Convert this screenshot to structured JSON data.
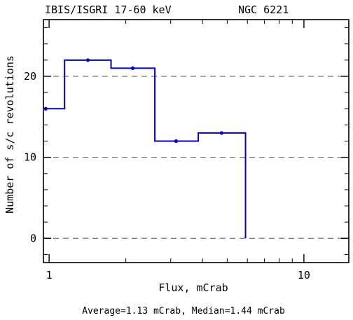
{
  "header": {
    "left_title": "IBIS/ISGRI 17-60 keV",
    "right_title": "NGC 6221"
  },
  "footer": {
    "stats": "Average=1.13 mCrab,  Median=1.44 mCrab"
  },
  "chart_data": {
    "type": "line",
    "style": "step-histogram",
    "title": "",
    "xlabel": "Flux, mCrab",
    "ylabel": "Number of s/c revolutions",
    "xscale": "log",
    "xlim": [
      0.95,
      15
    ],
    "ylim": [
      -3,
      27
    ],
    "grid": "horizontal dashed at y=0, 10, 20",
    "line_color": "#0000cc",
    "x_ticks": [
      {
        "value": 1,
        "label": "1"
      },
      {
        "value": 10,
        "label": "10"
      }
    ],
    "y_ticks": [
      {
        "value": 0,
        "label": "0"
      },
      {
        "value": 10,
        "label": "10"
      },
      {
        "value": 20,
        "label": "20"
      }
    ],
    "bin_edges": [
      0.95,
      1.15,
      1.75,
      2.6,
      3.85,
      5.9
    ],
    "counts": [
      16,
      22,
      21,
      12,
      13
    ],
    "points": [
      {
        "x": 0.97,
        "y": 16
      },
      {
        "x": 1.42,
        "y": 22
      },
      {
        "x": 2.13,
        "y": 21
      },
      {
        "x": 3.15,
        "y": 12
      },
      {
        "x": 4.75,
        "y": 13
      }
    ]
  }
}
